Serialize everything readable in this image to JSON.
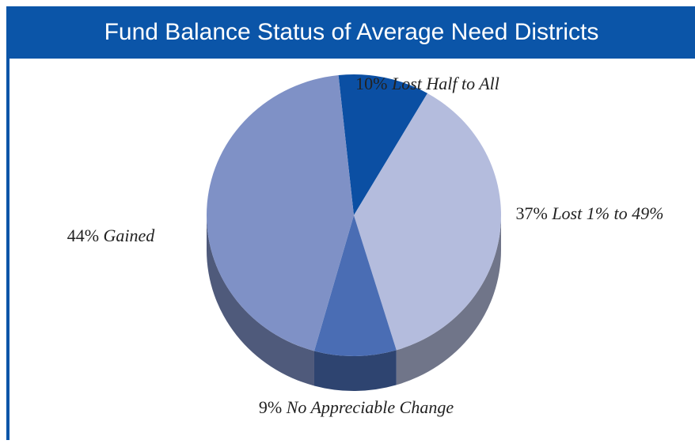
{
  "chart_data": {
    "type": "pie",
    "title": "Fund Balance Status of Average Need Districts",
    "categories": [
      "Lost Half to All",
      "Lost 1% to 49%",
      "No Appreciable Change",
      "Gained"
    ],
    "values": [
      10,
      37,
      9,
      44
    ],
    "value_labels": [
      "10%",
      "37%",
      "9%",
      "44%"
    ],
    "colors": [
      "#0b4fa3",
      "#b4bcdd",
      "#4a6db4",
      "#7f91c6"
    ]
  }
}
